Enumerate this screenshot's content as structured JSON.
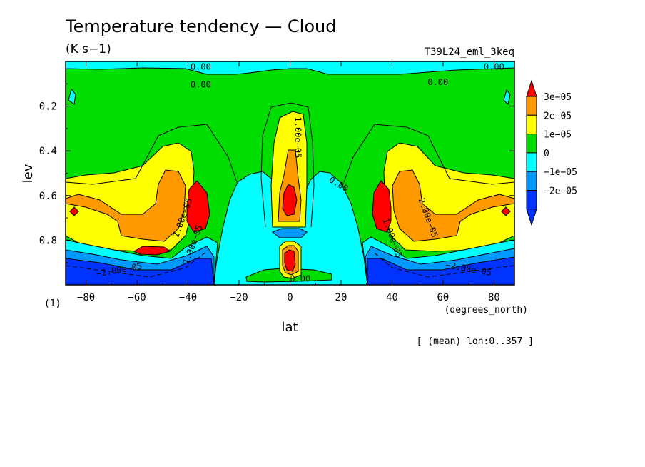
{
  "chart_data": {
    "type": "heatmap",
    "title": "Temperature tendency — Cloud",
    "subtitle": "(K s−1)",
    "experiment": "T39L24_eml_3keq",
    "xlabel": "lat",
    "xunits": "(degrees_north)",
    "ylabel": "lev",
    "yunits": "(1)",
    "footer": "[ (mean) lon:0..357 ]",
    "xlim": [
      -88,
      88
    ],
    "ylim": [
      0.0,
      1.0
    ],
    "y_inverted": true,
    "x_ticks": [
      -80,
      -60,
      -40,
      -20,
      0,
      20,
      40,
      60,
      80
    ],
    "x_tick_labels": [
      "−80",
      "−60",
      "−40",
      "−20",
      "0",
      "20",
      "40",
      "60",
      "80"
    ],
    "y_ticks": [
      0.2,
      0.4,
      0.6,
      0.8
    ],
    "y_tick_labels": [
      "0.2",
      "0.4",
      "0.6",
      "0.8"
    ],
    "colorbar": {
      "levels": [
        "3e−05",
        "2e−05",
        "1e−05",
        "0",
        "−1e−05",
        "−2e−05"
      ],
      "colors": [
        "#ff0000",
        "#ff9900",
        "#ffff00",
        "#00dd00",
        "#00ffff",
        "#0099ff",
        "#0033ff",
        "#ff0000"
      ]
    },
    "contour_labels": [
      {
        "text": "0.00",
        "x": -35,
        "y": 0.025,
        "rot": 0
      },
      {
        "text": "0.00",
        "x": 80,
        "y": 0.025,
        "rot": 0
      },
      {
        "text": "0.00",
        "x": -35,
        "y": 0.105,
        "rot": 0
      },
      {
        "text": "0.00",
        "x": 58,
        "y": 0.095,
        "rot": 0
      },
      {
        "text": "1.00e−05",
        "x": 3,
        "y": 0.34,
        "rot": 90
      },
      {
        "text": "0.00",
        "x": 19,
        "y": 0.55,
        "rot": 30
      },
      {
        "text": "2.00e−05",
        "x": -42,
        "y": 0.7,
        "rot": -70
      },
      {
        "text": "2.00e−05",
        "x": 54,
        "y": 0.7,
        "rot": 70
      },
      {
        "text": "1.00e−05",
        "x": -38,
        "y": 0.82,
        "rot": -70
      },
      {
        "text": "1.00e−05",
        "x": 40,
        "y": 0.79,
        "rot": 70
      },
      {
        "text": "−2.00e−05",
        "x": -67,
        "y": 0.935,
        "rot": -10
      },
      {
        "text": "−2.00e−05",
        "x": 70,
        "y": 0.93,
        "rot": 10
      },
      {
        "text": "0.00",
        "x": 4,
        "y": 0.975,
        "rot": 0
      }
    ]
  }
}
